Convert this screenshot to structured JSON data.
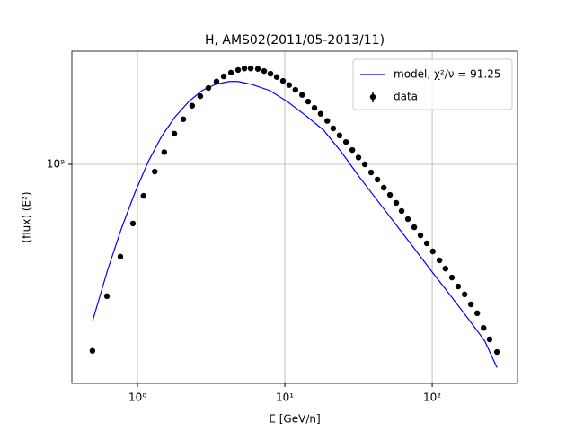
{
  "chart_data": {
    "type": "scatter",
    "title": "H, AMS02(2011/05-2013/11)",
    "x_label": "E [GeV/n]",
    "y_label": "(flux)  (E²)",
    "log_x": true,
    "log_y": true,
    "grid": true,
    "legend": "upper right",
    "xlim": [
      0.359,
      379
    ],
    "ylim": [
      153700000.0,
      2630000000.0
    ],
    "xticks": [
      {
        "value": 1,
        "label": "10⁰"
      },
      {
        "value": 10,
        "label": "10¹"
      },
      {
        "value": 100,
        "label": "10²"
      }
    ],
    "yticks": [
      {
        "value": 1000000000,
        "label": "10⁹"
      }
    ],
    "series": [
      {
        "name": "model, χ²/ν = 91.25",
        "type": "line",
        "color": "#0000ff",
        "x": [
          0.495,
          0.629,
          0.776,
          0.959,
          1.18,
          1.46,
          1.8,
          2.23,
          2.75,
          3.39,
          4.18,
          4.82,
          5.95,
          7.87,
          10.4,
          13.8,
          18.3,
          24.2,
          32.0,
          42.3,
          56.0,
          74.1,
          98.0,
          130,
          172,
          227,
          275
        ],
        "values": [
          261000000.0,
          407000000.0,
          575000000.0,
          782000000.0,
          1020000000.0,
          1270000000.0,
          1500000000.0,
          1710000000.0,
          1880000000.0,
          1980000000.0,
          2030000000.0,
          2030000000.0,
          1980000000.0,
          1880000000.0,
          1710000000.0,
          1520000000.0,
          1340000000.0,
          1110000000.0,
          898000000.0,
          736000000.0,
          603000000.0,
          494000000.0,
          404000000.0,
          331000000.0,
          271000000.0,
          221000000.0,
          176000000.0
        ]
      },
      {
        "name": "data",
        "type": "scatter",
        "color": "#000000",
        "x": [
          0.495,
          0.621,
          0.766,
          0.932,
          1.1,
          1.31,
          1.52,
          1.78,
          2.05,
          2.35,
          2.67,
          3.03,
          3.44,
          3.85,
          4.31,
          4.82,
          5.32,
          5.87,
          6.56,
          7.24,
          7.99,
          8.81,
          9.72,
          10.7,
          11.8,
          13.1,
          14.4,
          15.9,
          17.5,
          19.4,
          21.3,
          23.5,
          26.0,
          28.7,
          31.6,
          34.9,
          38.5,
          42.5,
          46.9,
          51.7,
          57.0,
          62.0,
          68.4,
          75.5,
          83.3,
          91.9,
          101,
          112,
          123,
          136,
          150,
          166,
          183,
          202,
          223,
          245,
          275
        ],
        "values": [
          203000000.0,
          324000000.0,
          454000000.0,
          603000000.0,
          764000000.0,
          940000000.0,
          1110000000.0,
          1300000000.0,
          1470000000.0,
          1650000000.0,
          1790000000.0,
          1920000000.0,
          2030000000.0,
          2120000000.0,
          2190000000.0,
          2240000000.0,
          2270000000.0,
          2270000000.0,
          2260000000.0,
          2220000000.0,
          2170000000.0,
          2110000000.0,
          2040000000.0,
          1970000000.0,
          1890000000.0,
          1810000000.0,
          1710000000.0,
          1620000000.0,
          1540000000.0,
          1450000000.0,
          1360000000.0,
          1280000000.0,
          1210000000.0,
          1130000000.0,
          1060000000.0,
          1000000000.0,
          933000000.0,
          878000000.0,
          819000000.0,
          770000000.0,
          719000000.0,
          671000000.0,
          626000000.0,
          584000000.0,
          545000000.0,
          509000000.0,
          475000000.0,
          440000000.0,
          410000000.0,
          380000000.0,
          352000000.0,
          329000000.0,
          302000000.0,
          280000000.0,
          247000000.0,
          224000000.0,
          201000000.0
        ]
      }
    ]
  }
}
